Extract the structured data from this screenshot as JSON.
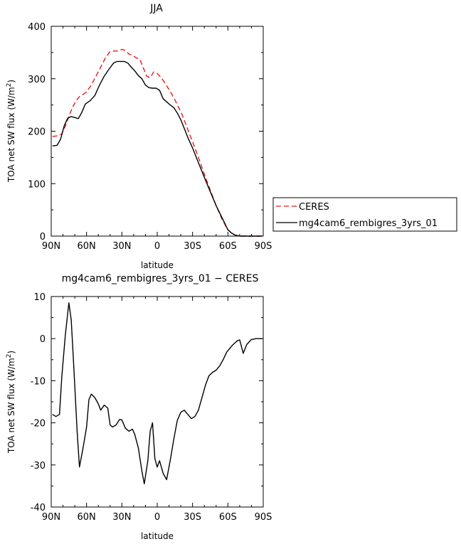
{
  "chart_data": [
    {
      "type": "line",
      "title": "JJA",
      "xlabel": "latitude",
      "ylabel": "TOA net SW flux (W/m",
      "ylabel_sup": "2",
      "ylabel_close": ")",
      "xlim": [
        90,
        -90
      ],
      "ylim": [
        0,
        400
      ],
      "xticks": [
        90,
        60,
        30,
        0,
        -30,
        -60,
        -90
      ],
      "xtick_labels": [
        "90N",
        "60N",
        "30N",
        "0",
        "30S",
        "60S",
        "90S"
      ],
      "yticks": [
        0,
        100,
        200,
        300,
        400
      ],
      "ytick_labels": [
        "0",
        "100",
        "200",
        "300",
        "400"
      ],
      "legend": "right",
      "series": [
        {
          "name": "CERES",
          "color": "#e8191c",
          "dash": "7,4",
          "x": [
            89,
            85,
            81,
            78,
            75,
            72,
            69,
            66,
            63,
            60,
            56,
            52,
            48,
            44,
            40,
            36,
            33,
            30,
            27,
            24,
            21,
            18,
            15,
            12,
            9,
            6,
            3,
            0,
            -3,
            -6,
            -9,
            -12,
            -15,
            -18,
            -21,
            -24,
            -27,
            -30,
            -35,
            -40,
            -45,
            -50,
            -55,
            -60,
            -63,
            -66,
            -70,
            -75,
            -80,
            -85,
            -89
          ],
          "y": [
            190,
            191,
            195,
            210,
            228,
            245,
            258,
            266,
            270,
            275,
            288,
            305,
            322,
            340,
            352,
            353,
            353,
            356,
            354,
            347,
            345,
            340,
            338,
            322,
            305,
            302,
            313,
            310,
            303,
            294,
            283,
            272,
            260,
            246,
            232,
            215,
            197,
            180,
            150,
            118,
            88,
            58,
            32,
            12,
            6,
            2,
            0,
            0,
            0,
            0,
            0
          ]
        },
        {
          "name": "mg4cam6_rembigres_3yrs_01",
          "color": "#000000",
          "dash": "",
          "x": [
            89,
            85,
            82,
            79,
            76,
            73,
            70,
            67,
            64,
            61,
            57,
            53,
            49,
            45,
            41,
            37,
            34,
            31,
            28,
            25,
            22,
            19,
            16,
            13,
            10,
            7,
            4,
            1,
            -2,
            -5,
            -8,
            -11,
            -14,
            -17,
            -20,
            -23,
            -26,
            -30,
            -35,
            -40,
            -45,
            -50,
            -55,
            -60,
            -63,
            -66,
            -70,
            -75,
            -80,
            -85,
            -89
          ],
          "y": [
            172,
            173,
            185,
            210,
            225,
            228,
            226,
            224,
            236,
            252,
            258,
            268,
            288,
            305,
            318,
            330,
            333,
            333,
            333,
            330,
            322,
            315,
            306,
            300,
            288,
            283,
            282,
            282,
            278,
            262,
            256,
            250,
            245,
            235,
            222,
            205,
            188,
            168,
            140,
            112,
            85,
            58,
            35,
            12,
            6,
            2,
            0,
            0,
            0,
            0,
            0
          ]
        }
      ]
    },
    {
      "type": "line",
      "title": "mg4cam6_rembigres_3yrs_01 − CERES",
      "xlabel": "latitude",
      "ylabel": "TOA net SW flux (W/m",
      "ylabel_sup": "2",
      "ylabel_close": ")",
      "xlim": [
        90,
        -90
      ],
      "ylim": [
        -40,
        10
      ],
      "xticks": [
        90,
        60,
        30,
        0,
        -30,
        -60,
        -90
      ],
      "xtick_labels": [
        "90N",
        "60N",
        "30N",
        "0",
        "30S",
        "60S",
        "90S"
      ],
      "yticks": [
        -40,
        -30,
        -20,
        -10,
        0,
        10
      ],
      "ytick_labels": [
        "-40",
        "-30",
        "-20",
        "-10",
        "0",
        "10"
      ],
      "series": [
        {
          "color": "#000000",
          "dash": "",
          "x": [
            89,
            86,
            83,
            81,
            78,
            75,
            73,
            71,
            68,
            66,
            63,
            60,
            58,
            56,
            53,
            50,
            48,
            45,
            42,
            40,
            38,
            35,
            32,
            30,
            27,
            24,
            21,
            19,
            16,
            13,
            11,
            8,
            6,
            4,
            2,
            0,
            -2,
            -5,
            -8,
            -11,
            -14,
            -17,
            -20,
            -23,
            -26,
            -29,
            -32,
            -35,
            -38,
            -41,
            -44,
            -47,
            -50,
            -53,
            -56,
            -59,
            -62,
            -64,
            -66,
            -68,
            -70,
            -73,
            -76,
            -80,
            -84,
            -89
          ],
          "y": [
            -18,
            -18.5,
            -18,
            -9,
            1,
            8.5,
            4.5,
            -6,
            -22,
            -30.5,
            -26,
            -21,
            -14.5,
            -13.2,
            -14,
            -15.5,
            -17,
            -15.8,
            -16.5,
            -20.5,
            -21,
            -20.5,
            -19.2,
            -19.3,
            -21.3,
            -22,
            -21.5,
            -22.8,
            -26,
            -31.5,
            -34.5,
            -29,
            -22,
            -20,
            -28.5,
            -30.5,
            -29,
            -32,
            -33.5,
            -29,
            -24,
            -19.5,
            -17.5,
            -17,
            -18,
            -19,
            -18.5,
            -17,
            -14,
            -11,
            -8.8,
            -8,
            -7.5,
            -6.5,
            -5,
            -3.2,
            -2.2,
            -1.5,
            -1,
            -0.5,
            -0.3,
            -3.5,
            -1.4,
            -0.2,
            0,
            0
          ]
        }
      ]
    }
  ]
}
